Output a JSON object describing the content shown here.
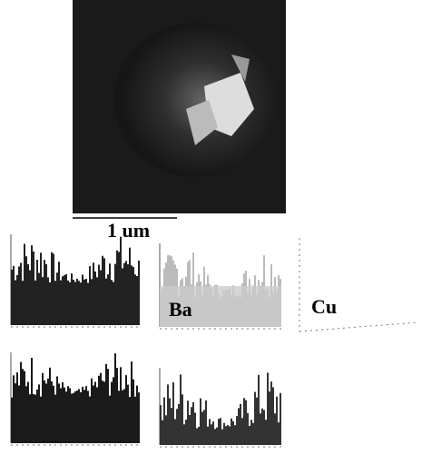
{
  "figure": {
    "scale_bar": "1 um",
    "labels": [
      "Ba",
      "Cu"
    ]
  }
}
